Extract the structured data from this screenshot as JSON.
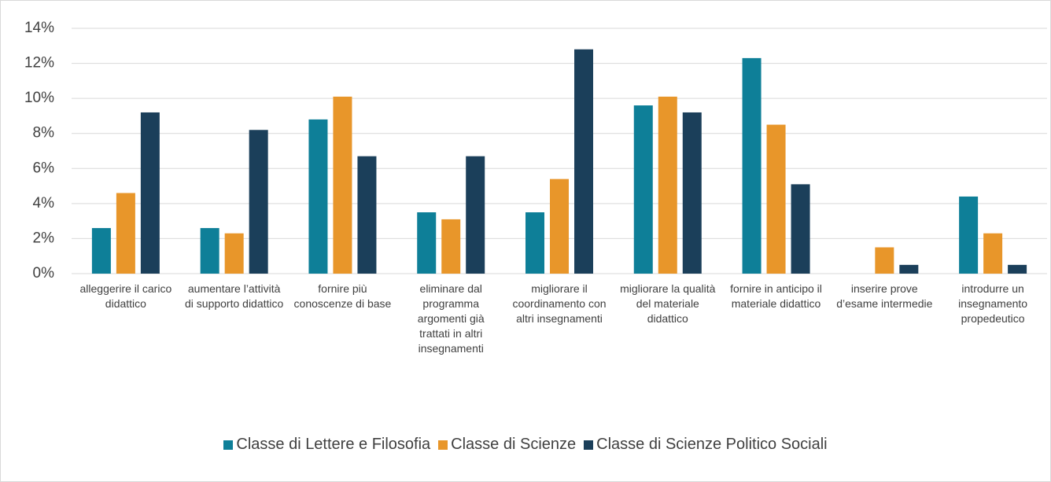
{
  "chart_data": {
    "type": "bar",
    "categories": [
      "alleggerire il carico didattico",
      "aumentare l’attività di supporto didattico",
      "fornire più conoscenze di base",
      "eliminare dal programma argomenti già trattati in altri insegnamenti",
      "migliorare il coordinamento con altri insegnamenti",
      "migliorare la qualità del materiale didattico",
      "fornire in anticipo il materiale didattico",
      "inserire prove d’esame intermedie",
      "introdurre un insegnamento propedeutico"
    ],
    "series": [
      {
        "name": "Classe di Lettere e Filosofia",
        "color": "#0e7f98",
        "values": [
          2.6,
          2.6,
          8.8,
          3.5,
          3.5,
          9.6,
          12.3,
          0,
          4.4
        ]
      },
      {
        "name": "Classe di Scienze",
        "color": "#e8962a",
        "values": [
          4.6,
          2.3,
          10.1,
          3.1,
          5.4,
          10.1,
          8.5,
          1.5,
          2.3
        ]
      },
      {
        "name": "Classe di Scienze Politico Sociali",
        "color": "#1b3f5a",
        "values": [
          9.2,
          8.2,
          6.7,
          6.7,
          12.8,
          9.2,
          5.1,
          0.5,
          0.5
        ]
      }
    ],
    "ylim": [
      0,
      14
    ],
    "yticks": [
      {
        "value": 0,
        "label": "0%"
      },
      {
        "value": 2,
        "label": "2%"
      },
      {
        "value": 4,
        "label": "4%"
      },
      {
        "value": 6,
        "label": "6%"
      },
      {
        "value": 8,
        "label": "8%"
      },
      {
        "value": 10,
        "label": "10%"
      },
      {
        "value": 12,
        "label": "12%"
      },
      {
        "value": 14,
        "label": "14%"
      }
    ],
    "grid": true,
    "legend": "bottom"
  }
}
